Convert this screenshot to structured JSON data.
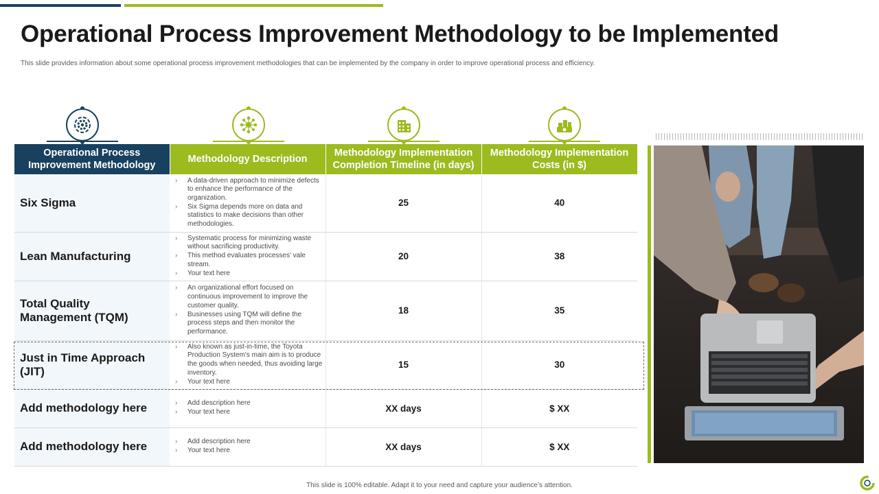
{
  "page": {
    "title": "Operational Process Improvement Methodology to be Implemented",
    "subtitle": "This slide provides information about some operational process improvement methodologies that can be implemented  by the company in order to improve operational process and efficiency.",
    "footer": "This slide is 100% editable.  Adapt it to your need and capture your audience’s attention."
  },
  "colors": {
    "dark_blue": "#17415e",
    "green": "#9bbb1f",
    "row_tint": "#f2f7fb"
  },
  "icons": [
    "gear-process-icon",
    "network-hub-icon",
    "building-icon",
    "money-stack-icon"
  ],
  "table": {
    "headers": [
      "Operational Process Improvement Methodology",
      "Methodology Description",
      "Methodology Implementation Completion Timeline (in days)",
      "Methodology Implementation Costs (in $)"
    ],
    "bullet_glyph": "›",
    "rows": [
      {
        "name": "Six Sigma",
        "bullets": [
          "A data-driven approach to minimize  defects to enhance the performance of the organization.",
          "Six Sigma depends more on data and statistics to make decisions than other methodologies."
        ],
        "timeline": "25",
        "cost": "40"
      },
      {
        "name": "Lean Manufacturing",
        "bullets": [
          "Systematic process for minimizing  waste without sacrificing productivity.",
          "This method evaluates processes' vale stream.",
          "Your text here"
        ],
        "timeline": "20",
        "cost": "38"
      },
      {
        "name": "Total Quality Management (TQM)",
        "bullets": [
          "An organizational effort focused on continuous improvement to improve the customer quality.",
          "Businesses using TQM  will define the process steps and then monitor the performance."
        ],
        "timeline": "18",
        "cost": "35"
      },
      {
        "name": "Just in Time Approach (JIT)",
        "bullets": [
          "Also known as just-in-time, the Toyota Production System's main aim is to produce the goods when needed, thus avoiding large inventory.",
          "Your text here"
        ],
        "timeline": "15",
        "cost": "30"
      },
      {
        "name": "Add methodology here",
        "bullets": [
          "Add description here",
          "Your text here"
        ],
        "timeline": "XX days",
        "cost": "$ XX"
      },
      {
        "name": "Add methodology here",
        "bullets": [
          "Add description here",
          "Your text here"
        ],
        "timeline": "XX days",
        "cost": "$ XX"
      }
    ]
  }
}
